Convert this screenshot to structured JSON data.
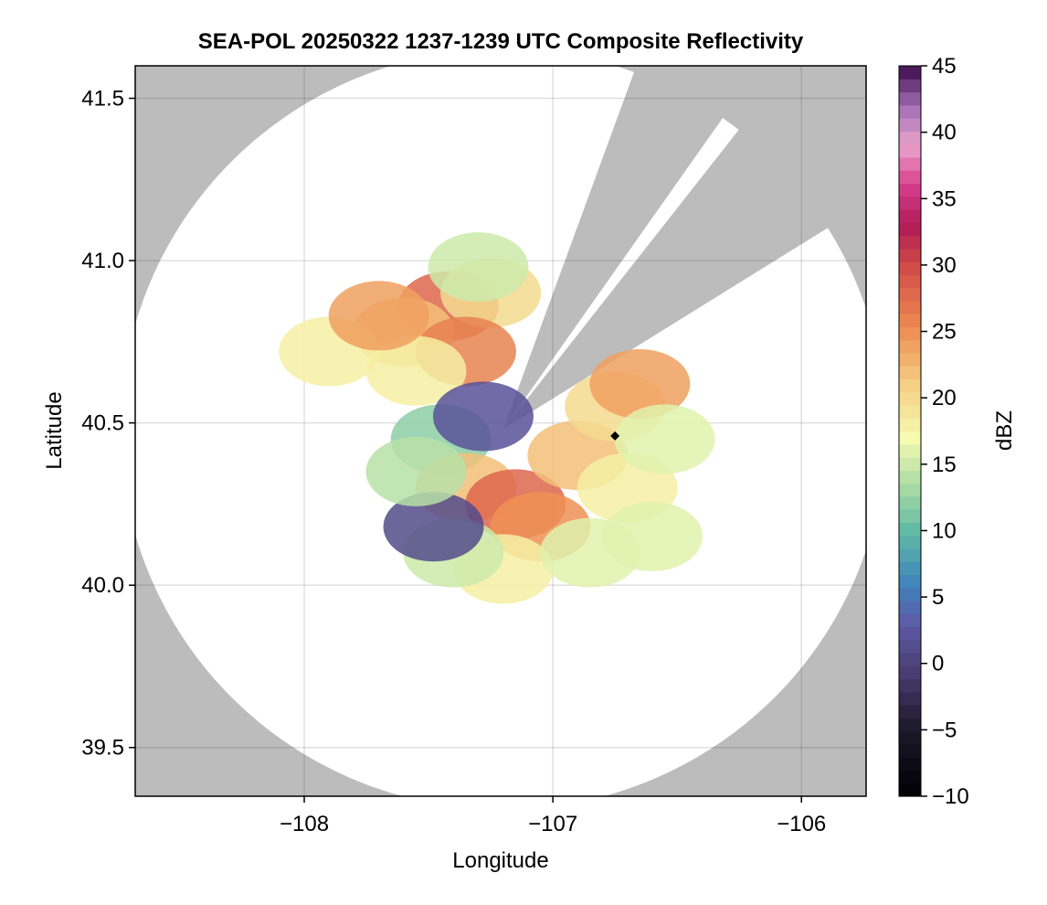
{
  "chart_data": {
    "type": "heatmap",
    "title": "SEA-POL 20250322 1237-1239 UTC Composite Reflectivity",
    "xlabel": "Longitude",
    "ylabel": "Latitude",
    "xlim": [
      -108.68,
      -105.74
    ],
    "ylim": [
      39.35,
      41.6
    ],
    "x_ticks": [
      -108,
      -107,
      -106
    ],
    "x_tick_labels": [
      "−108",
      "−107",
      "−106"
    ],
    "y_ticks": [
      39.5,
      40.0,
      40.5,
      41.0,
      41.5
    ],
    "y_tick_labels": [
      "39.5",
      "40.0",
      "40.5",
      "41.0",
      "41.5"
    ],
    "grid": true,
    "background_color": "#bcbcbc",
    "radar_coverage": {
      "center_lon": -107.2,
      "center_lat": 40.48,
      "max_range_km": 130,
      "blocked_sectors_deg": [
        [
          20,
          35
        ],
        [
          38,
          58
        ]
      ],
      "coverage_color": "#ffffff"
    },
    "radar_site_marker": {
      "lon": -106.75,
      "lat": 40.46,
      "color": "#000000"
    },
    "reflectivity_cells": [
      {
        "lon": -107.42,
        "lat": 40.86,
        "dbz": 28
      },
      {
        "lon": -107.6,
        "lat": 40.78,
        "dbz": 22
      },
      {
        "lon": -107.25,
        "lat": 40.9,
        "dbz": 20
      },
      {
        "lon": -107.35,
        "lat": 40.72,
        "dbz": 26
      },
      {
        "lon": -107.55,
        "lat": 40.66,
        "dbz": 18
      },
      {
        "lon": -107.9,
        "lat": 40.72,
        "dbz": 18
      },
      {
        "lon": -107.7,
        "lat": 40.83,
        "dbz": 24
      },
      {
        "lon": -107.3,
        "lat": 40.98,
        "dbz": 15
      },
      {
        "lon": -107.45,
        "lat": 40.45,
        "dbz": 12
      },
      {
        "lon": -107.28,
        "lat": 40.52,
        "dbz": 2
      },
      {
        "lon": -107.35,
        "lat": 40.3,
        "dbz": 22
      },
      {
        "lon": -107.15,
        "lat": 40.25,
        "dbz": 28
      },
      {
        "lon": -107.05,
        "lat": 40.18,
        "dbz": 25
      },
      {
        "lon": -106.9,
        "lat": 40.4,
        "dbz": 22
      },
      {
        "lon": -106.75,
        "lat": 40.55,
        "dbz": 20
      },
      {
        "lon": -106.65,
        "lat": 40.62,
        "dbz": 24
      },
      {
        "lon": -106.7,
        "lat": 40.3,
        "dbz": 18
      },
      {
        "lon": -106.6,
        "lat": 40.15,
        "dbz": 16
      },
      {
        "lon": -107.2,
        "lat": 40.05,
        "dbz": 18
      },
      {
        "lon": -107.4,
        "lat": 40.1,
        "dbz": 15
      },
      {
        "lon": -107.48,
        "lat": 40.18,
        "dbz": 1
      },
      {
        "lon": -106.55,
        "lat": 40.45,
        "dbz": 16
      },
      {
        "lon": -106.85,
        "lat": 40.1,
        "dbz": 16
      },
      {
        "lon": -107.55,
        "lat": 40.35,
        "dbz": 14
      }
    ],
    "colorbar": {
      "label": "dBZ",
      "range": [
        -10,
        45
      ],
      "ticks": [
        -10,
        -5,
        0,
        5,
        10,
        15,
        20,
        25,
        30,
        35,
        40,
        45
      ],
      "tick_labels": [
        "−10",
        "−5",
        "0",
        "5",
        "10",
        "15",
        "20",
        "25",
        "30",
        "35",
        "40",
        "45"
      ],
      "stops": [
        {
          "value": -10,
          "color": "#000004"
        },
        {
          "value": -5,
          "color": "#1b1829"
        },
        {
          "value": -1,
          "color": "#463b6c"
        },
        {
          "value": 3,
          "color": "#5e5aa7"
        },
        {
          "value": 6,
          "color": "#3f84bc"
        },
        {
          "value": 10,
          "color": "#62bba6"
        },
        {
          "value": 13,
          "color": "#a2d8a4"
        },
        {
          "value": 17,
          "color": "#f6fbb0"
        },
        {
          "value": 21,
          "color": "#f4cf84"
        },
        {
          "value": 25,
          "color": "#ee9053"
        },
        {
          "value": 30,
          "color": "#d24a48"
        },
        {
          "value": 33,
          "color": "#b01b55"
        },
        {
          "value": 36,
          "color": "#d63e8d"
        },
        {
          "value": 39,
          "color": "#eba3cb"
        },
        {
          "value": 42,
          "color": "#a06db4"
        },
        {
          "value": 45,
          "color": "#3d0a4a"
        }
      ]
    }
  }
}
